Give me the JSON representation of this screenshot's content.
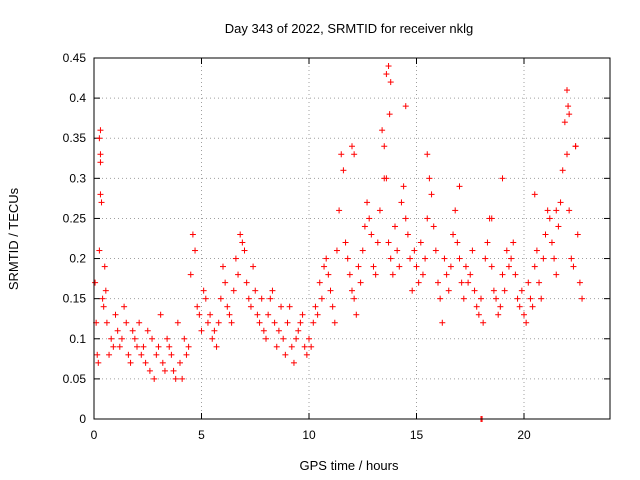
{
  "chart_data": {
    "type": "scatter",
    "title": "Day 343 of 2022, SRMTID for receiver nklg",
    "xlabel": "GPS time / hours",
    "ylabel": "SRMTID / TECUs",
    "xlim": [
      0,
      24
    ],
    "ylim": [
      0,
      0.45
    ],
    "x_ticks": [
      0,
      5,
      10,
      15,
      20
    ],
    "x_tick_labels": [
      "0",
      "5",
      "10",
      "15",
      "20"
    ],
    "y_ticks": [
      0,
      0.05,
      0.1,
      0.15,
      0.2,
      0.25,
      0.3,
      0.35,
      0.4,
      0.45
    ],
    "y_tick_labels": [
      "0",
      "0.05",
      "0.1",
      "0.15",
      "0.2",
      "0.25",
      "0.3",
      "0.35",
      "0.4",
      "0.45"
    ],
    "grid": true,
    "marker": "+",
    "color": "#ff0000",
    "series": [
      {
        "name": "SRMTID",
        "x": [
          0.05,
          0.1,
          0.15,
          0.2,
          0.25,
          0.3,
          0.3,
          0.3,
          0.35,
          0.4,
          0.45,
          0.5,
          0.55,
          0.6,
          0.7,
          0.8,
          0.9,
          1.0,
          1.1,
          1.2,
          1.3,
          1.4,
          1.5,
          1.6,
          1.7,
          1.8,
          1.9,
          2.0,
          2.1,
          2.2,
          2.3,
          2.4,
          2.5,
          2.6,
          2.7,
          2.8,
          2.9,
          3.0,
          3.1,
          3.2,
          3.3,
          3.4,
          3.5,
          3.6,
          3.7,
          3.8,
          3.9,
          4.0,
          4.1,
          4.2,
          4.3,
          4.4,
          4.5,
          4.6,
          4.7,
          4.8,
          4.9,
          5.0,
          5.1,
          5.2,
          5.3,
          5.4,
          5.5,
          5.6,
          5.7,
          5.8,
          5.9,
          6.0,
          6.1,
          6.2,
          6.3,
          6.4,
          6.5,
          6.6,
          6.7,
          6.8,
          6.9,
          7.0,
          7.1,
          7.2,
          7.3,
          7.4,
          7.5,
          7.6,
          7.7,
          7.8,
          7.9,
          8.0,
          8.1,
          8.2,
          8.3,
          8.4,
          8.5,
          8.6,
          8.7,
          8.8,
          8.9,
          9.0,
          9.1,
          9.2,
          9.3,
          9.4,
          9.5,
          9.6,
          9.7,
          9.8,
          9.9,
          10.0,
          10.1,
          10.2,
          10.3,
          10.4,
          10.5,
          10.6,
          10.7,
          10.8,
          10.9,
          11.0,
          11.1,
          11.2,
          11.3,
          11.4,
          11.5,
          11.6,
          11.7,
          11.8,
          11.9,
          12.0,
          12.1,
          12.2,
          12.3,
          12.4,
          12.5,
          12.6,
          12.7,
          12.8,
          12.9,
          13.0,
          13.1,
          13.2,
          13.3,
          13.4,
          13.5,
          13.6,
          13.7,
          13.8,
          13.9,
          14.0,
          14.1,
          14.2,
          14.3,
          14.4,
          14.5,
          14.6,
          14.7,
          14.8,
          14.9,
          15.0,
          15.1,
          15.2,
          15.3,
          15.4,
          15.5,
          15.6,
          15.7,
          15.8,
          15.9,
          16.0,
          16.1,
          16.2,
          16.3,
          16.4,
          16.5,
          16.6,
          16.7,
          16.8,
          16.9,
          17.0,
          17.1,
          17.2,
          17.3,
          17.4,
          17.5,
          17.6,
          17.7,
          17.8,
          17.9,
          18.0,
          18.1,
          18.2,
          18.3,
          18.4,
          18.5,
          18.6,
          18.7,
          18.8,
          18.9,
          19.0,
          19.1,
          19.2,
          19.3,
          19.4,
          19.5,
          19.6,
          19.7,
          19.8,
          19.9,
          20.0,
          20.1,
          20.2,
          20.3,
          20.4,
          20.5,
          20.6,
          20.7,
          20.8,
          20.9,
          21.0,
          21.1,
          21.2,
          21.3,
          21.4,
          21.5,
          21.6,
          21.7,
          21.8,
          21.9,
          22.0,
          22.1,
          22.2,
          22.3,
          22.4,
          22.5,
          22.6,
          22.7,
          13.6,
          13.7,
          13.8,
          13.75,
          22.0,
          22.05,
          22.1,
          0.25,
          0.3,
          12.0,
          12.1,
          13.5,
          14.5,
          15.5,
          17.0,
          18.5,
          19.0,
          20.5,
          21.5,
          22.4,
          18.0,
          18.05
        ],
        "y": [
          0.17,
          0.12,
          0.08,
          0.07,
          0.21,
          0.36,
          0.32,
          0.28,
          0.27,
          0.15,
          0.14,
          0.19,
          0.16,
          0.12,
          0.08,
          0.1,
          0.09,
          0.13,
          0.11,
          0.09,
          0.1,
          0.14,
          0.12,
          0.08,
          0.07,
          0.11,
          0.1,
          0.09,
          0.12,
          0.08,
          0.09,
          0.07,
          0.11,
          0.06,
          0.1,
          0.05,
          0.08,
          0.09,
          0.13,
          0.07,
          0.06,
          0.1,
          0.09,
          0.08,
          0.06,
          0.05,
          0.12,
          0.07,
          0.05,
          0.1,
          0.08,
          0.09,
          0.18,
          0.23,
          0.21,
          0.14,
          0.13,
          0.11,
          0.16,
          0.15,
          0.12,
          0.13,
          0.1,
          0.11,
          0.09,
          0.12,
          0.15,
          0.19,
          0.17,
          0.14,
          0.13,
          0.12,
          0.16,
          0.2,
          0.18,
          0.23,
          0.22,
          0.21,
          0.17,
          0.15,
          0.14,
          0.19,
          0.16,
          0.13,
          0.12,
          0.15,
          0.11,
          0.1,
          0.13,
          0.15,
          0.16,
          0.12,
          0.09,
          0.11,
          0.14,
          0.1,
          0.08,
          0.12,
          0.14,
          0.09,
          0.07,
          0.1,
          0.11,
          0.12,
          0.13,
          0.09,
          0.08,
          0.1,
          0.09,
          0.12,
          0.14,
          0.13,
          0.17,
          0.15,
          0.19,
          0.2,
          0.18,
          0.16,
          0.14,
          0.12,
          0.21,
          0.26,
          0.33,
          0.31,
          0.22,
          0.2,
          0.18,
          0.16,
          0.15,
          0.13,
          0.19,
          0.17,
          0.21,
          0.24,
          0.27,
          0.25,
          0.23,
          0.19,
          0.18,
          0.22,
          0.26,
          0.36,
          0.34,
          0.3,
          0.22,
          0.2,
          0.18,
          0.24,
          0.21,
          0.19,
          0.27,
          0.29,
          0.25,
          0.23,
          0.2,
          0.16,
          0.21,
          0.19,
          0.17,
          0.22,
          0.18,
          0.2,
          0.25,
          0.3,
          0.28,
          0.24,
          0.21,
          0.17,
          0.15,
          0.12,
          0.2,
          0.18,
          0.16,
          0.19,
          0.23,
          0.26,
          0.22,
          0.2,
          0.17,
          0.15,
          0.19,
          0.17,
          0.18,
          0.21,
          0.16,
          0.14,
          0.13,
          0.15,
          0.12,
          0.2,
          0.22,
          0.25,
          0.19,
          0.16,
          0.15,
          0.13,
          0.14,
          0.18,
          0.16,
          0.21,
          0.19,
          0.2,
          0.22,
          0.18,
          0.15,
          0.14,
          0.16,
          0.13,
          0.12,
          0.17,
          0.15,
          0.14,
          0.19,
          0.21,
          0.17,
          0.15,
          0.2,
          0.23,
          0.26,
          0.25,
          0.22,
          0.2,
          0.18,
          0.24,
          0.27,
          0.31,
          0.37,
          0.33,
          0.26,
          0.2,
          0.19,
          0.34,
          0.23,
          0.17,
          0.15,
          0.43,
          0.44,
          0.42,
          0.38,
          0.41,
          0.39,
          0.38,
          0.35,
          0.33,
          0.34,
          0.33,
          0.3,
          0.39,
          0.33,
          0.29,
          0.25,
          0.3,
          0.28,
          0.26,
          0.34,
          0.0,
          0.0
        ]
      }
    ]
  }
}
